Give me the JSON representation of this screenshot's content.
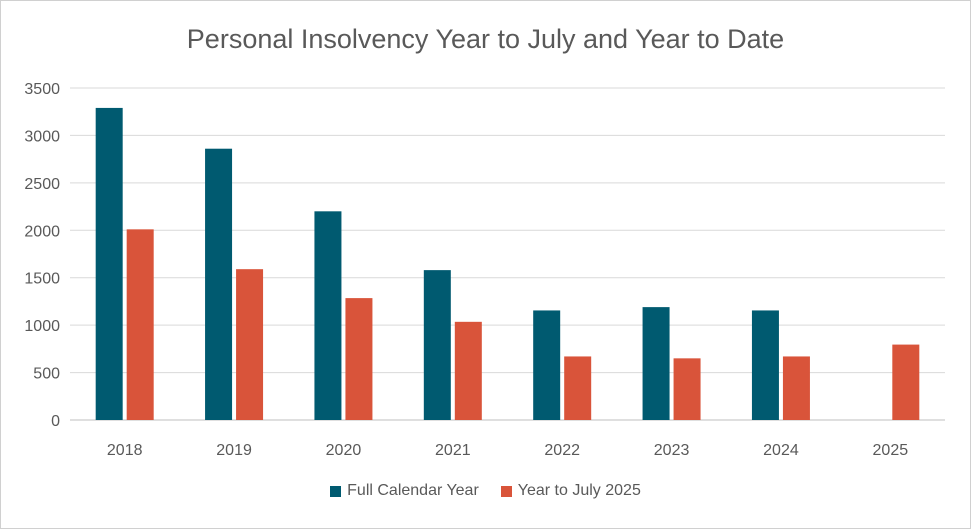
{
  "chart_data": {
    "type": "bar",
    "title": "Personal Insolvency Year to July and Year to Date",
    "categories": [
      "2018",
      "2019",
      "2020",
      "2021",
      "2022",
      "2023",
      "2024",
      "2025"
    ],
    "series": [
      {
        "name": "Full Calendar Year",
        "color": "#005A70",
        "values": [
          3290,
          2860,
          2200,
          1580,
          1155,
          1190,
          1155,
          null
        ]
      },
      {
        "name": "Year to July 2025",
        "color": "#D9543A",
        "values": [
          2010,
          1590,
          1285,
          1035,
          670,
          650,
          670,
          795
        ]
      }
    ],
    "yticks": [
      "0",
      "500",
      "1000",
      "1500",
      "2000",
      "2500",
      "3000",
      "3500"
    ],
    "ylim": [
      0,
      3500
    ],
    "grid": true,
    "legend_position": "bottom"
  }
}
